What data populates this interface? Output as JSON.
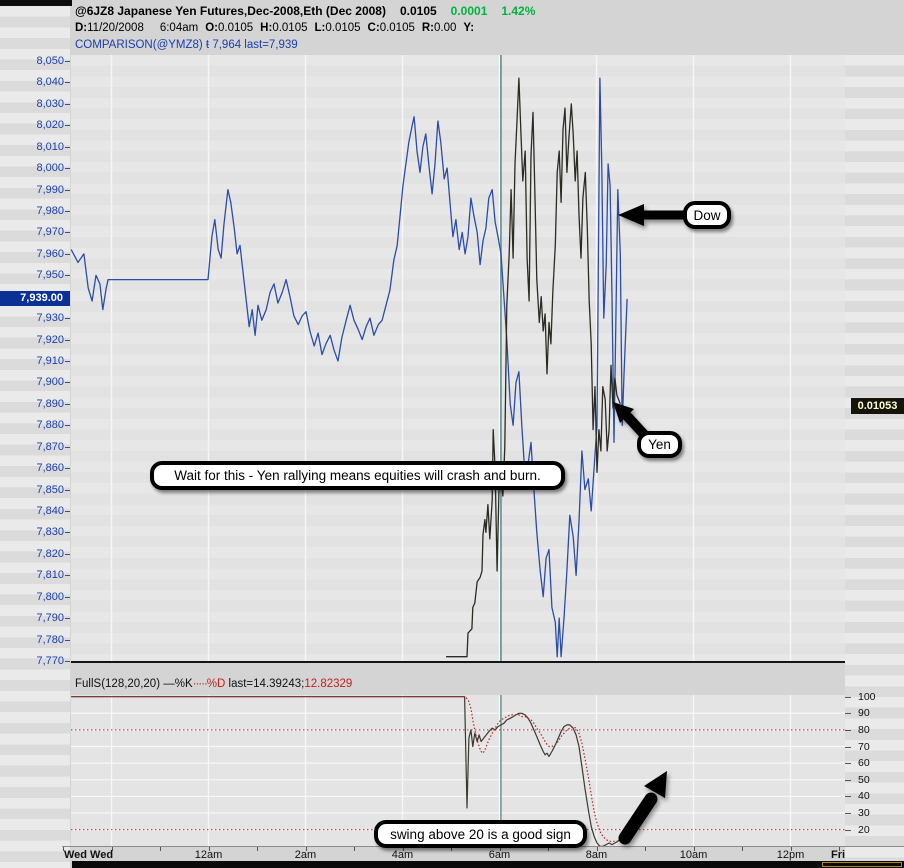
{
  "header": {
    "title": "@6JZ8 Japanese Yen Futures,Dec-2008,Eth (Dec 2008)",
    "last": "0.0105",
    "change": "0.0001",
    "change_pct": "1.42%",
    "fields": [
      {
        "label": "D:",
        "value": "11/20/2008"
      },
      {
        "label": "",
        "value": "6:04am"
      },
      {
        "label": "O:",
        "value": "0.0105"
      },
      {
        "label": "H:",
        "value": "0.0105"
      },
      {
        "label": "L:",
        "value": "0.0105"
      },
      {
        "label": "C:",
        "value": "0.0105"
      },
      {
        "label": "R:",
        "value": "0.00"
      },
      {
        "label": "Y:",
        "value": ""
      }
    ],
    "comparison": "COMPARISON(@YMZ8) ŧ 7,964 last=7,939"
  },
  "y_axis": {
    "labels": [
      "8,050",
      "8,040",
      "8,030",
      "8,020",
      "8,010",
      "8,000",
      "7,990",
      "7,980",
      "7,970",
      "7,960",
      "7,950",
      "7,930",
      "7,920",
      "7,910",
      "7,900",
      "7,890",
      "7,880",
      "7,870",
      "7,860",
      "7,850",
      "7,840",
      "7,830",
      "7,820",
      "7,810",
      "7,800",
      "7,790",
      "7,780",
      "7,770"
    ],
    "values": [
      8050,
      8040,
      8030,
      8020,
      8010,
      8000,
      7990,
      7980,
      7970,
      7960,
      7950,
      7930,
      7920,
      7910,
      7900,
      7890,
      7880,
      7870,
      7860,
      7850,
      7840,
      7830,
      7820,
      7810,
      7800,
      7790,
      7780,
      7770
    ],
    "last_badge": "7,939.00"
  },
  "yen_badge": "0.01053",
  "x_axis": {
    "labels": [
      {
        "text": "Wed Wed",
        "h": -2.98,
        "bold": true,
        "align": "left"
      },
      {
        "text": "12am",
        "h": 0
      },
      {
        "text": "2am",
        "h": 2
      },
      {
        "text": "4am",
        "h": 4
      },
      {
        "text": "6am",
        "h": 6
      },
      {
        "text": "8am",
        "h": 8
      },
      {
        "text": "10am",
        "h": 10
      },
      {
        "text": "12pm",
        "h": 12
      },
      {
        "text": "Fri",
        "h": 12.98,
        "bold": true
      }
    ]
  },
  "indicator_header": {
    "name": "FullS(128,20,20)",
    "k_prefix": "—",
    "k": "%K",
    "dots": "·····",
    "d": "%D",
    "last_prefix": "last=",
    "k_last": "14.39243;",
    "d_last": "12.82329"
  },
  "indicator_right_labels": [
    "100",
    "90",
    "80",
    "70",
    "60",
    "50",
    "40",
    "30",
    "20"
  ],
  "annotations": {
    "dow_label": "Dow",
    "yen_label": "Yen",
    "main_note": "Wait for this - Yen rallying means equities will crash and burn.",
    "stoch_note": "swing above 20 is a good sign"
  },
  "chart_data": [
    {
      "type": "line",
      "title": "@6JZ8 Japanese Yen Futures with Dow (@YMZ8) comparison",
      "x_unit": "hours_from_thursday_midnight",
      "ylim": [
        7770,
        8050
      ],
      "y_tick_step": 10,
      "session_line_h": 6.03,
      "grid_hours": [
        -2,
        0,
        2,
        4,
        6,
        8,
        10,
        12
      ],
      "series": [
        {
          "name": "Dow (@YMZ8 comparison)",
          "color": "#2b4da8",
          "x": [
            -2.83,
            -2.69,
            -2.57,
            -2.48,
            -2.4,
            -2.32,
            -2.24,
            -2.18,
            -2.11,
            -2.07,
            -0.01,
            0.07,
            0.13,
            0.2,
            0.26,
            0.32,
            0.4,
            0.46,
            0.53,
            0.59,
            0.65,
            0.71,
            0.77,
            0.84,
            0.9,
            0.96,
            1.02,
            1.1,
            1.19,
            1.27,
            1.35,
            1.43,
            1.52,
            1.6,
            1.68,
            1.76,
            1.85,
            1.93,
            2.01,
            2.09,
            2.18,
            2.26,
            2.34,
            2.42,
            2.51,
            2.59,
            2.67,
            2.75,
            2.84,
            2.92,
            3.0,
            3.08,
            3.17,
            3.25,
            3.33,
            3.41,
            3.5,
            3.58,
            3.66,
            3.74,
            3.82,
            3.89,
            3.95,
            4.01,
            4.07,
            4.13,
            4.2,
            4.24,
            4.3,
            4.36,
            4.42,
            4.48,
            4.55,
            4.61,
            4.67,
            4.73,
            4.79,
            4.86,
            4.92,
            4.98,
            5.04,
            5.1,
            5.17,
            5.23,
            5.29,
            5.35,
            5.41,
            5.47,
            5.54,
            5.6,
            5.66,
            5.72,
            5.78,
            5.85,
            5.91,
            5.97,
            6.03,
            6.09,
            6.15,
            6.22,
            6.28,
            6.34,
            6.4,
            6.46,
            6.53,
            6.59,
            6.65,
            6.71,
            6.77,
            6.84,
            6.9,
            6.96,
            7.02,
            7.08,
            7.15,
            7.19,
            7.23,
            7.27,
            7.33,
            7.39,
            7.45,
            7.52,
            7.58,
            7.64,
            7.7,
            7.76,
            7.83,
            7.89,
            7.95,
            8.01,
            8.07,
            8.11,
            8.15,
            8.2,
            8.24,
            8.28,
            8.32,
            8.36,
            8.4,
            8.44,
            8.49,
            8.53,
            8.57,
            8.63
          ],
          "y": [
            7962,
            7956,
            7960,
            7944,
            7938,
            7950,
            7946,
            7934,
            7944,
            7948,
            7948,
            7968,
            7976,
            7962,
            7958,
            7974,
            7990,
            7984,
            7972,
            7960,
            7964,
            7952,
            7940,
            7926,
            7934,
            7922,
            7936,
            7929,
            7934,
            7942,
            7946,
            7937,
            7942,
            7948,
            7940,
            7931,
            7927,
            7931,
            7933,
            7924,
            7917,
            7923,
            7913,
            7918,
            7922,
            7915,
            7910,
            7921,
            7929,
            7936,
            7929,
            7925,
            7920,
            7926,
            7930,
            7922,
            7927,
            7929,
            7936,
            7943,
            7957,
            7964,
            7978,
            7992,
            8002,
            8012,
            8020,
            8024,
            8008,
            7998,
            8010,
            8016,
            8000,
            7988,
            8002,
            8022,
            8012,
            7995,
            8000,
            7984,
            7968,
            7976,
            7962,
            7970,
            7960,
            7968,
            7986,
            7978,
            7970,
            7955,
            7966,
            7972,
            7986,
            7990,
            7975,
            7968,
            7960,
            7940,
            7920,
            7890,
            7880,
            7900,
            7905,
            7880,
            7855,
            7862,
            7872,
            7850,
            7830,
            7812,
            7800,
            7818,
            7822,
            7795,
            7788,
            7772,
            7790,
            7772,
            7790,
            7812,
            7838,
            7828,
            7810,
            7835,
            7868,
            7850,
            7855,
            7840,
            7860,
            7880,
            8042,
            8000,
            7930,
            7955,
            8002,
            7992,
            7940,
            7872,
            7930,
            7990,
            7960,
            7880,
            7905,
            7939
          ]
        },
        {
          "name": "Yen (@6JZ8)",
          "color": "#2b2b22",
          "x": [
            4.9,
            5.33,
            5.35,
            5.43,
            5.45,
            5.49,
            5.54,
            5.6,
            5.64,
            5.66,
            5.7,
            5.72,
            5.76,
            5.8,
            5.85,
            5.87,
            5.91,
            5.95,
            5.99,
            6.03,
            6.07,
            6.11,
            6.15,
            6.2,
            6.24,
            6.28,
            6.32,
            6.36,
            6.4,
            6.44,
            6.48,
            6.53,
            6.57,
            6.61,
            6.65,
            6.69,
            6.73,
            6.77,
            6.82,
            6.86,
            6.9,
            6.94,
            6.98,
            7.02,
            7.06,
            7.1,
            7.15,
            7.19,
            7.23,
            7.27,
            7.31,
            7.35,
            7.39,
            7.43,
            7.48,
            7.52,
            7.56,
            7.6,
            7.64,
            7.68,
            7.72,
            7.77,
            7.81,
            7.85,
            7.89,
            7.93,
            7.97,
            8.01,
            8.05,
            8.09,
            8.13,
            8.18,
            8.22,
            8.26,
            8.3,
            8.34,
            8.38,
            8.42,
            8.49
          ],
          "y": [
            7772,
            7772,
            7783,
            7785,
            7795,
            7797,
            7807,
            7809,
            7812,
            7829,
            7836,
            7830,
            7843,
            7827,
            7845,
            7878,
            7860,
            7812,
            7850,
            7856,
            7847,
            7870,
            7936,
            7960,
            7990,
            7958,
            8002,
            8022,
            8042,
            8018,
            7994,
            8008,
            7958,
            7938,
            8006,
            8026,
            7988,
            7948,
            7928,
            7940,
            7924,
            7932,
            7904,
            7928,
            7918,
            7942,
            7964,
            7998,
            8008,
            7984,
            8018,
            8028,
            7998,
            8014,
            8030,
            8016,
            7994,
            8008,
            7978,
            7958,
            7986,
            7998,
            7972,
            7938,
            7918,
            7878,
            7898,
            7858,
            7878,
            7868,
            7898,
            7892,
            7868,
            7878,
            7908,
            7888,
            7902,
            7894,
            7890
          ]
        }
      ]
    },
    {
      "type": "line",
      "title": "FullS(128,20,20) stochastic",
      "x_unit": "hours_from_thursday_midnight",
      "ylim": [
        10,
        100
      ],
      "ref_lines": [
        80,
        20
      ],
      "grid_values": [
        90,
        80,
        70,
        60,
        50,
        40,
        30,
        20
      ],
      "last": {
        "k": 14.39243,
        "d": 12.82329
      },
      "series": [
        {
          "name": "%K",
          "color": "#3a3a30",
          "style": "solid",
          "x": [
            -2.83,
            5.28,
            5.33,
            5.37,
            5.41,
            5.45,
            5.49,
            5.54,
            5.58,
            5.62,
            5.7,
            5.78,
            5.85,
            5.91,
            5.97,
            6.03,
            6.09,
            6.15,
            6.22,
            6.28,
            6.34,
            6.4,
            6.46,
            6.53,
            6.59,
            6.65,
            6.71,
            6.77,
            6.84,
            6.9,
            6.94,
            6.98,
            7.02,
            7.08,
            7.15,
            7.21,
            7.27,
            7.33,
            7.39,
            7.45,
            7.52,
            7.58,
            7.64,
            7.7,
            7.76,
            7.83,
            7.89,
            7.95,
            8.01,
            8.07,
            8.13,
            8.2,
            8.26,
            8.32,
            8.38,
            8.44,
            8.49
          ],
          "y": [
            100,
            100,
            33,
            75,
            80,
            70,
            78,
            73,
            77,
            73,
            76,
            79,
            81,
            80,
            82,
            83,
            84,
            86,
            87,
            88,
            89,
            90,
            90,
            89,
            87,
            84,
            80,
            76,
            71,
            67,
            65,
            66,
            64,
            67,
            71,
            75,
            79,
            82,
            83,
            83,
            81,
            77,
            70,
            58,
            45,
            32,
            22,
            16,
            12,
            10,
            10,
            11,
            12,
            11,
            12,
            13,
            14.4
          ]
        },
        {
          "name": "%D",
          "color": "#c22222",
          "style": "dotted",
          "x": [
            -2.83,
            5.3,
            5.37,
            5.41,
            5.45,
            5.49,
            5.54,
            5.58,
            5.62,
            5.66,
            5.7,
            5.74,
            5.78,
            5.85,
            5.91,
            5.97,
            6.03,
            6.09,
            6.15,
            6.22,
            6.28,
            6.34,
            6.4,
            6.46,
            6.53,
            6.59,
            6.65,
            6.71,
            6.77,
            6.84,
            6.9,
            6.96,
            7.02,
            7.08,
            7.15,
            7.21,
            7.27,
            7.33,
            7.39,
            7.45,
            7.52,
            7.58,
            7.64,
            7.7,
            7.76,
            7.83,
            7.89,
            7.95,
            8.01,
            8.07,
            8.13,
            8.2,
            8.26,
            8.32,
            8.38,
            8.44,
            8.49
          ],
          "y": [
            100,
            100,
            97,
            93,
            86,
            80,
            74,
            70,
            67,
            66,
            68,
            71,
            74,
            78,
            81,
            84,
            86,
            87,
            88,
            89,
            89,
            89,
            89,
            88,
            88,
            87,
            86,
            84,
            81,
            78,
            75,
            72,
            70,
            70,
            71,
            73,
            76,
            78,
            80,
            81,
            82,
            81,
            78,
            72,
            63,
            52,
            41,
            31,
            24,
            19,
            16,
            14,
            13,
            13,
            13,
            13,
            12.8
          ]
        }
      ]
    }
  ],
  "colors": {
    "accent_blue": "#2b4da8",
    "dark_line": "#2b2b22",
    "red": "#c22222",
    "green": "#00b33c",
    "teal_session": "#5f9090",
    "axis_blue": "#1a3fae",
    "badge_navy": "#0a3193",
    "badge_black": "#15130a",
    "badge_yellow_text": "#ffffd6"
  }
}
